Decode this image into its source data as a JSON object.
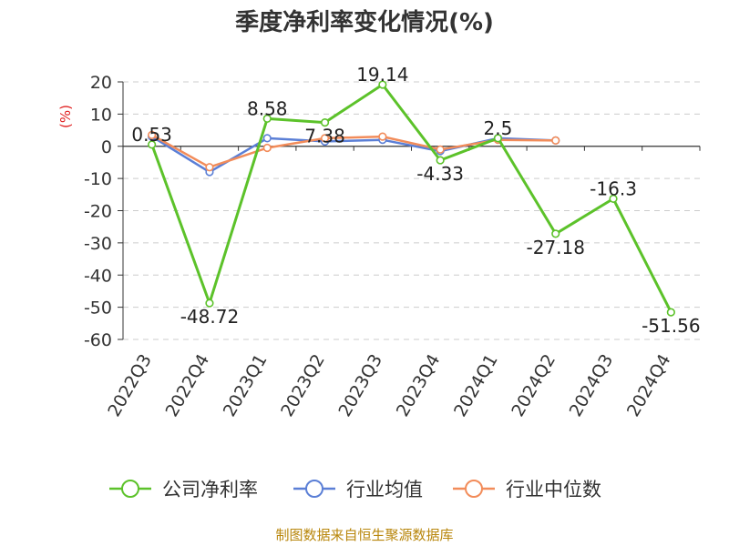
{
  "colors": {
    "company": "#5cc22a",
    "industry_avg": "#5b7fd6",
    "industry_median": "#f28c5a",
    "ylabel": "#e02020",
    "source": "#b8860b"
  },
  "source_text": "制图数据来自恒生聚源数据库",
  "chart_data": {
    "type": "line",
    "title": "季度净利率变化情况(%)",
    "ylabel": "(%)",
    "xlabel": "",
    "ylim": [
      -60,
      20
    ],
    "yticks": [
      20,
      10,
      0,
      -10,
      -20,
      -30,
      -40,
      -50,
      -60
    ],
    "grid": true,
    "legend_position": "bottom",
    "categories": [
      "2022Q3",
      "2022Q4",
      "2023Q1",
      "2023Q2",
      "2023Q3",
      "2023Q4",
      "2024Q1",
      "2024Q2",
      "2024Q3",
      "2024Q4"
    ],
    "series": [
      {
        "name": "公司净利率",
        "color": "#5cc22a",
        "values": [
          0.53,
          -48.72,
          8.58,
          7.38,
          19.14,
          -4.33,
          2.5,
          -27.18,
          -16.3,
          -51.56
        ],
        "labels": [
          "0.53",
          "-48.72",
          "8.58",
          "7.38",
          "19.14",
          "-4.33",
          "2.5",
          "-27.18",
          "-16.3",
          "-51.56"
        ]
      },
      {
        "name": "行业均值",
        "color": "#5b7fd6",
        "values": [
          3.0,
          -8.0,
          2.5,
          1.5,
          2.0,
          -1.5,
          2.5,
          1.8,
          null,
          null
        ]
      },
      {
        "name": "行业中位数",
        "color": "#f28c5a",
        "values": [
          3.5,
          -6.5,
          -0.5,
          2.5,
          3.0,
          -1.0,
          2.0,
          1.8,
          null,
          null
        ]
      }
    ]
  }
}
